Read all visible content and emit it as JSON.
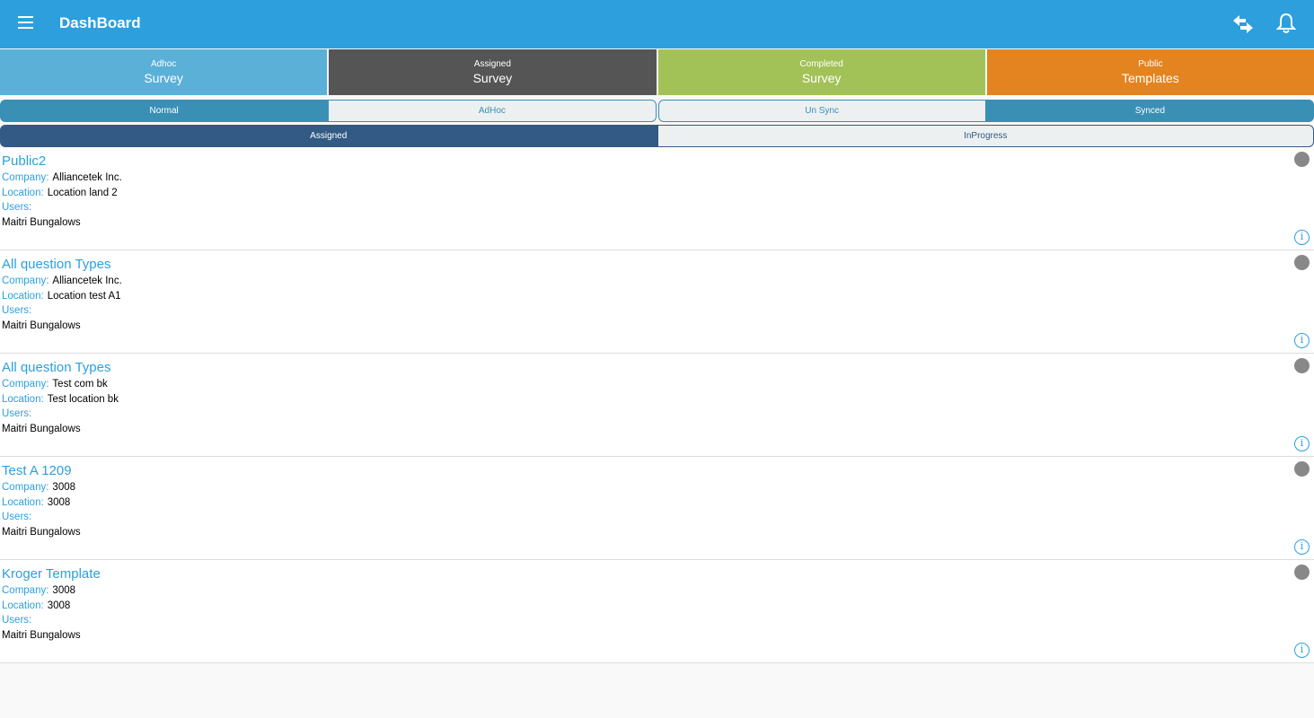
{
  "header": {
    "title": "DashBoard",
    "menu_icon": "hamburger-icon",
    "sync_icon": "swap-arrows-icon",
    "notify_icon": "bell-icon"
  },
  "tiles": [
    {
      "small": "Adhoc",
      "big": "Survey",
      "color": "#5bb0d8"
    },
    {
      "small": "Assigned",
      "big": "Survey",
      "color": "#555555"
    },
    {
      "small": "Completed",
      "big": "Survey",
      "color": "#a2c257"
    },
    {
      "small": "Public",
      "big": "Templates",
      "color": "#e38420"
    }
  ],
  "filters1": {
    "left": [
      "Normal",
      "AdHoc"
    ],
    "left_selected": "Normal",
    "right": [
      "Un Sync",
      "Synced"
    ],
    "right_selected": "Synced"
  },
  "filters2": {
    "items": [
      "Assigned",
      "InProgress"
    ],
    "selected": "Assigned"
  },
  "labels": {
    "company": "Company:",
    "location": "Location:",
    "users": "Users:"
  },
  "surveys": [
    {
      "title": "Public2",
      "company": "Alliancetek Inc.",
      "location": "Location land 2",
      "users": "Maitri Bungalows"
    },
    {
      "title": "All question Types",
      "company": "Alliancetek Inc.",
      "location": "Location test A1",
      "users": "Maitri Bungalows"
    },
    {
      "title": "All question Types",
      "company": "Test com bk",
      "location": "Test location bk",
      "users": "Maitri Bungalows"
    },
    {
      "title": "Test A 1209",
      "company": "3008",
      "location": "3008",
      "users": "Maitri Bungalows"
    },
    {
      "title": "Kroger Template",
      "company": "3008",
      "location": "3008",
      "users": "Maitri Bungalows"
    }
  ]
}
